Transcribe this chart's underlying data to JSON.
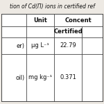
{
  "title": "tion of Cd(Π) ions in certified ref",
  "col0_texts": [
    "",
    "",
    "er)",
    "oil)"
  ],
  "col1_header": "Unit",
  "col2_header": "Concent",
  "col2_subheader": "Certified",
  "row1_unit": "μg L⁻¹",
  "row2_unit": "mg kg⁻¹",
  "row1_val": "22.79",
  "row2_val": "0.371",
  "bg_color": "#ede9e3",
  "table_bg": "#ffffff",
  "line_color": "#444444",
  "text_color": "#111111",
  "title_fontsize": 5.5,
  "font_size": 6.0
}
